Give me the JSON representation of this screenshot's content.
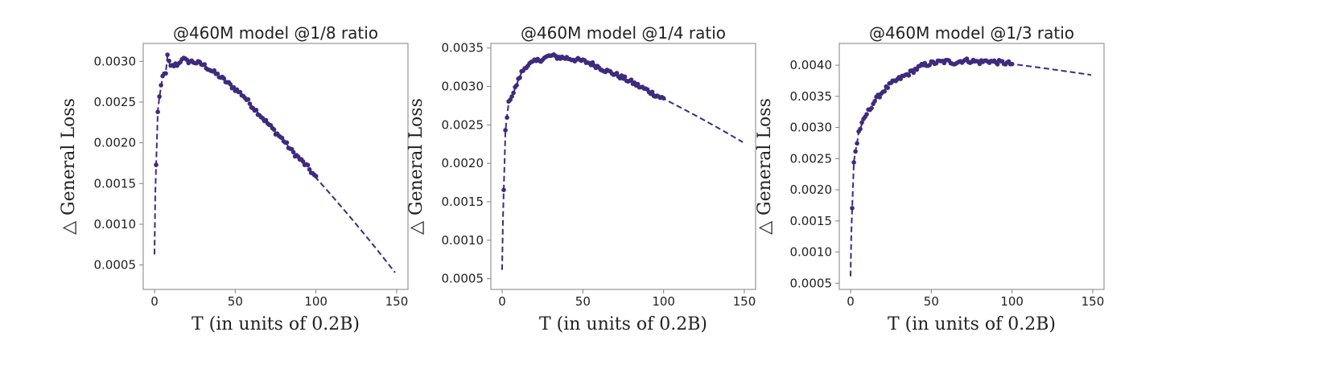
{
  "colors": {
    "series": "#3f2a7e",
    "frame": "#808080",
    "text": "#222222"
  },
  "chart_data": [
    {
      "type": "scatter",
      "title": "@460M model @1/8 ratio",
      "xlabel": "T (in units of 0.2B)",
      "ylabel": "△ General Loss",
      "xlim": [
        -7,
        157
      ],
      "ylim": [
        0.0002,
        0.00322
      ],
      "xticks": [
        0,
        50,
        100,
        150
      ],
      "xtick_labels": [
        "0",
        "50",
        "100",
        "150"
      ],
      "yticks": [
        0.0005,
        0.001,
        0.0015,
        0.002,
        0.0025,
        0.003
      ],
      "ytick_labels": [
        "0.0005",
        "0.0010",
        "0.0015",
        "0.0020",
        "0.0025",
        "0.0030"
      ],
      "fit": {
        "A": 4.45e-06,
        "B": 0.00029,
        "a": 0.5,
        "b": 1.3,
        "xmax": 149
      },
      "scatter_anchors": [
        [
          1,
          0.00172
        ],
        [
          2,
          0.00239
        ],
        [
          3,
          0.00256
        ],
        [
          4,
          0.00268
        ],
        [
          5,
          0.00281
        ],
        [
          7,
          0.00287
        ],
        [
          8,
          0.00306
        ],
        [
          10,
          0.00293
        ],
        [
          12,
          0.00295
        ],
        [
          15,
          0.00297
        ],
        [
          17,
          0.00304
        ],
        [
          20,
          0.003
        ],
        [
          22,
          0.003
        ],
        [
          25,
          0.00299
        ],
        [
          30,
          0.00296
        ],
        [
          35,
          0.00289
        ],
        [
          40,
          0.00282
        ],
        [
          45,
          0.00274
        ],
        [
          50,
          0.00266
        ],
        [
          55,
          0.00258
        ],
        [
          60,
          0.00246
        ],
        [
          65,
          0.00235
        ],
        [
          70,
          0.00224
        ],
        [
          75,
          0.00213
        ],
        [
          80,
          0.00203
        ],
        [
          85,
          0.0019
        ],
        [
          90,
          0.0018
        ],
        [
          95,
          0.0017
        ],
        [
          100,
          0.00157
        ]
      ]
    },
    {
      "type": "scatter",
      "title": "@460M model @1/4 ratio",
      "xlabel": "T (in units of 0.2B)",
      "ylabel": "△ General Loss",
      "xlim": [
        -7,
        157
      ],
      "ylim": [
        0.00036,
        0.00356
      ],
      "xticks": [
        0,
        50,
        100,
        150
      ],
      "xtick_labels": [
        "0",
        "50",
        "100",
        "150"
      ],
      "yticks": [
        0.0005,
        0.001,
        0.0015,
        0.002,
        0.0025,
        0.003,
        0.0035
      ],
      "ytick_labels": [
        "0.0005",
        "0.0010",
        "0.0015",
        "0.0020",
        "0.0025",
        "0.0030",
        "0.0035"
      ],
      "fit": {
        "A": 4.65e-06,
        "B": 0.00031,
        "a": 0.4,
        "b": 1.2,
        "xmax": 149
      },
      "scatter_anchors": [
        [
          1,
          0.00165
        ],
        [
          2,
          0.00242
        ],
        [
          3,
          0.00262
        ],
        [
          4,
          0.00278
        ],
        [
          5,
          0.00285
        ],
        [
          7,
          0.00292
        ],
        [
          10,
          0.00308
        ],
        [
          12,
          0.00318
        ],
        [
          15,
          0.00327
        ],
        [
          20,
          0.00332
        ],
        [
          25,
          0.00336
        ],
        [
          30,
          0.0034
        ],
        [
          35,
          0.00338
        ],
        [
          40,
          0.00337
        ],
        [
          45,
          0.00335
        ],
        [
          50,
          0.00333
        ],
        [
          55,
          0.0033
        ],
        [
          60,
          0.00325
        ],
        [
          65,
          0.0032
        ],
        [
          70,
          0.00316
        ],
        [
          75,
          0.00311
        ],
        [
          80,
          0.00306
        ],
        [
          85,
          0.003
        ],
        [
          90,
          0.00295
        ],
        [
          95,
          0.00289
        ],
        [
          100,
          0.00284
        ]
      ]
    },
    {
      "type": "scatter",
      "title": "@460M model @1/3 ratio",
      "xlabel": "T (in units of 0.2B)",
      "ylabel": "△ General Loss",
      "xlim": [
        -7,
        157
      ],
      "ylim": [
        0.0004,
        0.00435
      ],
      "xticks": [
        0,
        50,
        100,
        150
      ],
      "xtick_labels": [
        "0",
        "50",
        "100",
        "150"
      ],
      "yticks": [
        0.0005,
        0.001,
        0.0015,
        0.002,
        0.0025,
        0.003,
        0.0035,
        0.004
      ],
      "ytick_labels": [
        "0.0005",
        "0.0010",
        "0.0015",
        "0.0020",
        "0.0025",
        "0.0030",
        "0.0035",
        "0.0040"
      ],
      "fit": {
        "A": 5.2e-06,
        "B": 0.00034,
        "a": 0.22,
        "b": 1.15,
        "xmax": 149
      },
      "scatter_anchors": [
        [
          1,
          0.0017
        ],
        [
          2,
          0.00245
        ],
        [
          3,
          0.00262
        ],
        [
          4,
          0.00275
        ],
        [
          5,
          0.00293
        ],
        [
          7,
          0.00305
        ],
        [
          10,
          0.00322
        ],
        [
          12,
          0.0033
        ],
        [
          15,
          0.00343
        ],
        [
          20,
          0.00358
        ],
        [
          25,
          0.0037
        ],
        [
          30,
          0.00378
        ],
        [
          35,
          0.00385
        ],
        [
          40,
          0.00393
        ],
        [
          45,
          0.004
        ],
        [
          50,
          0.00403
        ],
        [
          55,
          0.00405
        ],
        [
          60,
          0.00406
        ],
        [
          65,
          0.00404
        ],
        [
          70,
          0.00408
        ],
        [
          75,
          0.00407
        ],
        [
          80,
          0.00405
        ],
        [
          85,
          0.00407
        ],
        [
          90,
          0.00405
        ],
        [
          95,
          0.00404
        ],
        [
          100,
          0.00402
        ]
      ]
    }
  ]
}
